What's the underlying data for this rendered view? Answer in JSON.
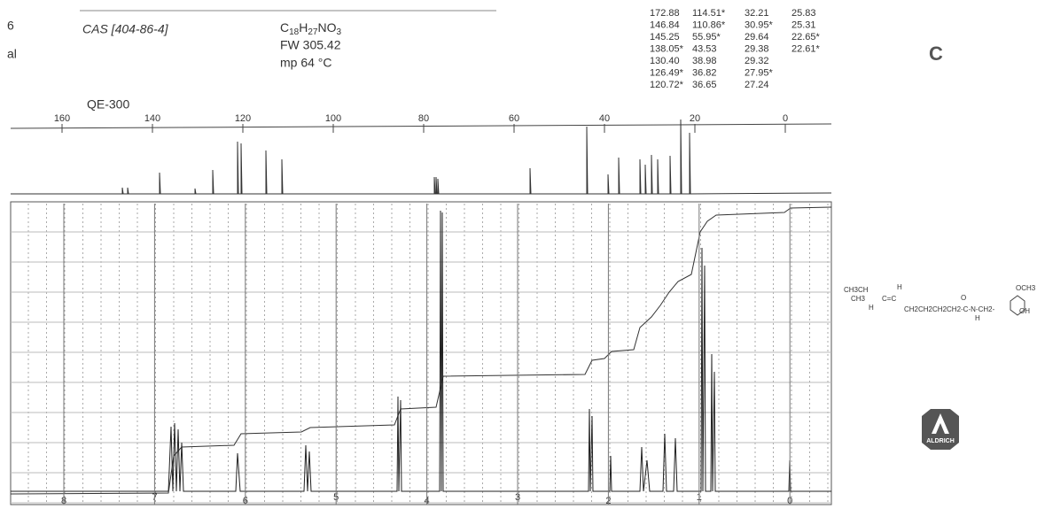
{
  "header": {
    "left_fragments": [
      "6",
      "al"
    ],
    "cas": "CAS [404-86-4]",
    "formula": [
      "C",
      "18",
      "H",
      "27",
      "NO",
      "3"
    ],
    "fw": "FW 305.42",
    "mp": "mp 64 °C",
    "instrument": "QE-300",
    "section": "C"
  },
  "c13_shifts": {
    "columns": [
      [
        "172.88",
        "146.84",
        "145.25",
        "138.05*",
        "130.40",
        "126.49*",
        "120.72*"
      ],
      [
        "114.51*",
        "110.86*",
        "55.95*",
        "43.53",
        "38.98",
        "36.82",
        "36.65"
      ],
      [
        "32.21",
        "30.95*",
        "29.64",
        "29.38",
        "29.32",
        "27.95*",
        "27.24"
      ],
      [
        "25.83",
        "25.31",
        "22.65*",
        "22.61*"
      ]
    ]
  },
  "c13_axis": [
    "160",
    "140",
    "120",
    "100",
    "80",
    "60",
    "40",
    "20",
    "0"
  ],
  "h1_axis": [
    "8",
    "7",
    "6",
    "5",
    "4",
    "3",
    "2",
    "1",
    "0"
  ],
  "structure": [
    "CH3CH",
    "CH3",
    "H",
    "C=C",
    "H",
    "CH2CH2CH2CH2-C-N-CH2-",
    "O",
    "H",
    "OCH3",
    "OH"
  ],
  "logo": "ALDRICH"
}
